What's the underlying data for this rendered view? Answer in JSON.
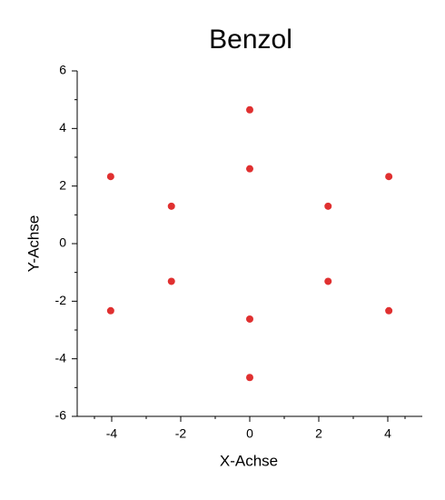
{
  "chart_data": {
    "type": "scatter",
    "title": "Benzol",
    "x_label": "X-Achse",
    "y_label": "Y-Achse",
    "series": [
      {
        "color": "#e03030",
        "x": [
          -4.03,
          -2.27,
          0,
          0,
          2.27,
          4.03,
          -4.03,
          -2.27,
          0,
          0,
          2.27,
          4.03
        ],
        "values": [
          2.33,
          1.3,
          4.65,
          2.6,
          1.3,
          2.33,
          -2.33,
          -1.31,
          -2.62,
          -4.65,
          -1.31,
          -2.33
        ]
      }
    ],
    "xlim": [
      -5,
      5
    ],
    "xticks": [
      -4,
      -2,
      0,
      2,
      4
    ],
    "ylim": [
      -6,
      6
    ],
    "yticks": [
      -6,
      -4,
      -2,
      0,
      2,
      4,
      6
    ],
    "grid": false
  }
}
